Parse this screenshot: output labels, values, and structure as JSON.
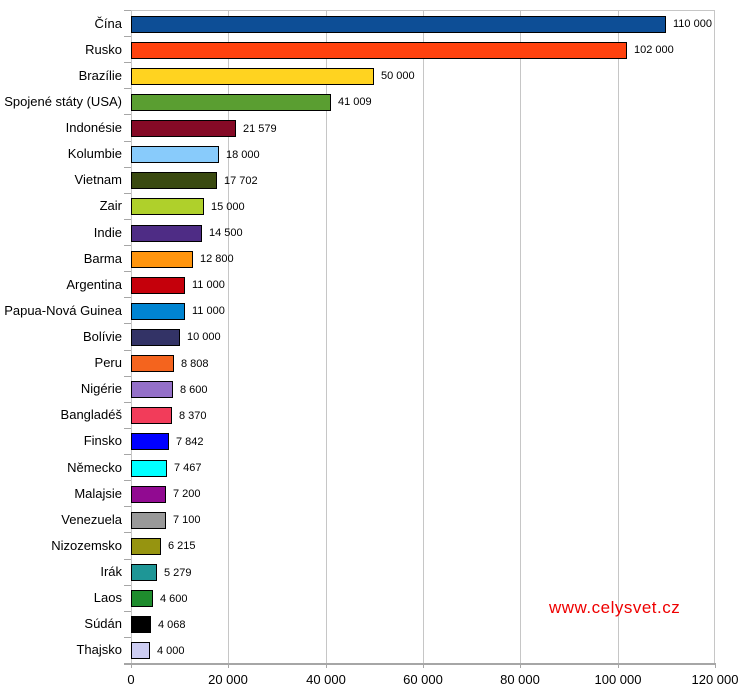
{
  "watermark": {
    "text": "www.celysvet.cz",
    "color": "#EE0000"
  },
  "style": {
    "background": "#FFFFFF",
    "gridline_color": "#C6C6C6",
    "axis_color": "#A6A6A6",
    "bar_border_color": "#000000",
    "text_color": "#000000"
  },
  "chart_data": {
    "type": "bar",
    "orientation": "horizontal",
    "title": "",
    "xlabel": "",
    "ylabel": "",
    "legend": "none",
    "grid": "vertical",
    "xlim": [
      0,
      120000
    ],
    "x_ticks": [
      0,
      20000,
      40000,
      60000,
      80000,
      100000,
      120000
    ],
    "x_tick_labels": [
      "0",
      "20 000",
      "40 000",
      "60 000",
      "80 000",
      "100 000",
      "120 000"
    ],
    "categories": [
      "Čína",
      "Rusko",
      "Brazílie",
      "Spojené státy (USA)",
      "Indonésie",
      "Kolumbie",
      "Vietnam",
      "Zair",
      "Indie",
      "Barma",
      "Argentina",
      "Papua-Nová Guinea",
      "Bolívie",
      "Peru",
      "Nigérie",
      "Bangladéš",
      "Finsko",
      "Německo",
      "Malajsie",
      "Venezuela",
      "Nizozemsko",
      "Irák",
      "Laos",
      "Súdán",
      "Thajsko"
    ],
    "values": [
      110000,
      102000,
      50000,
      41009,
      21579,
      18000,
      17702,
      15000,
      14500,
      12800,
      11000,
      11000,
      10000,
      8808,
      8600,
      8370,
      7842,
      7467,
      7200,
      7100,
      6215,
      5279,
      4600,
      4068,
      4000
    ],
    "value_labels": [
      "110 000",
      "102 000",
      "50 000",
      "41 009",
      "21 579",
      "18 000",
      "17 702",
      "15 000",
      "14 500",
      "12 800",
      "11 000",
      "11 000",
      "10 000",
      "8 808",
      "8 600",
      "8 370",
      "7 842",
      "7 467",
      "7 200",
      "7 100",
      "6 215",
      "5 279",
      "4 600",
      "4 068",
      "4 000"
    ],
    "bar_colors": [
      "#0D4E96",
      "#FF420E",
      "#FFD320",
      "#5A9E31",
      "#850A26",
      "#88CBFB",
      "#3A4A10",
      "#AFD02B",
      "#4E2C85",
      "#FF950E",
      "#C5000B",
      "#0084D1",
      "#333366",
      "#F4641E",
      "#9470C8",
      "#F23C5A",
      "#0000FF",
      "#00FFFF",
      "#910A91",
      "#999999",
      "#969410",
      "#1E9696",
      "#1E8C2D",
      "#000000",
      "#CDCDF2"
    ]
  }
}
